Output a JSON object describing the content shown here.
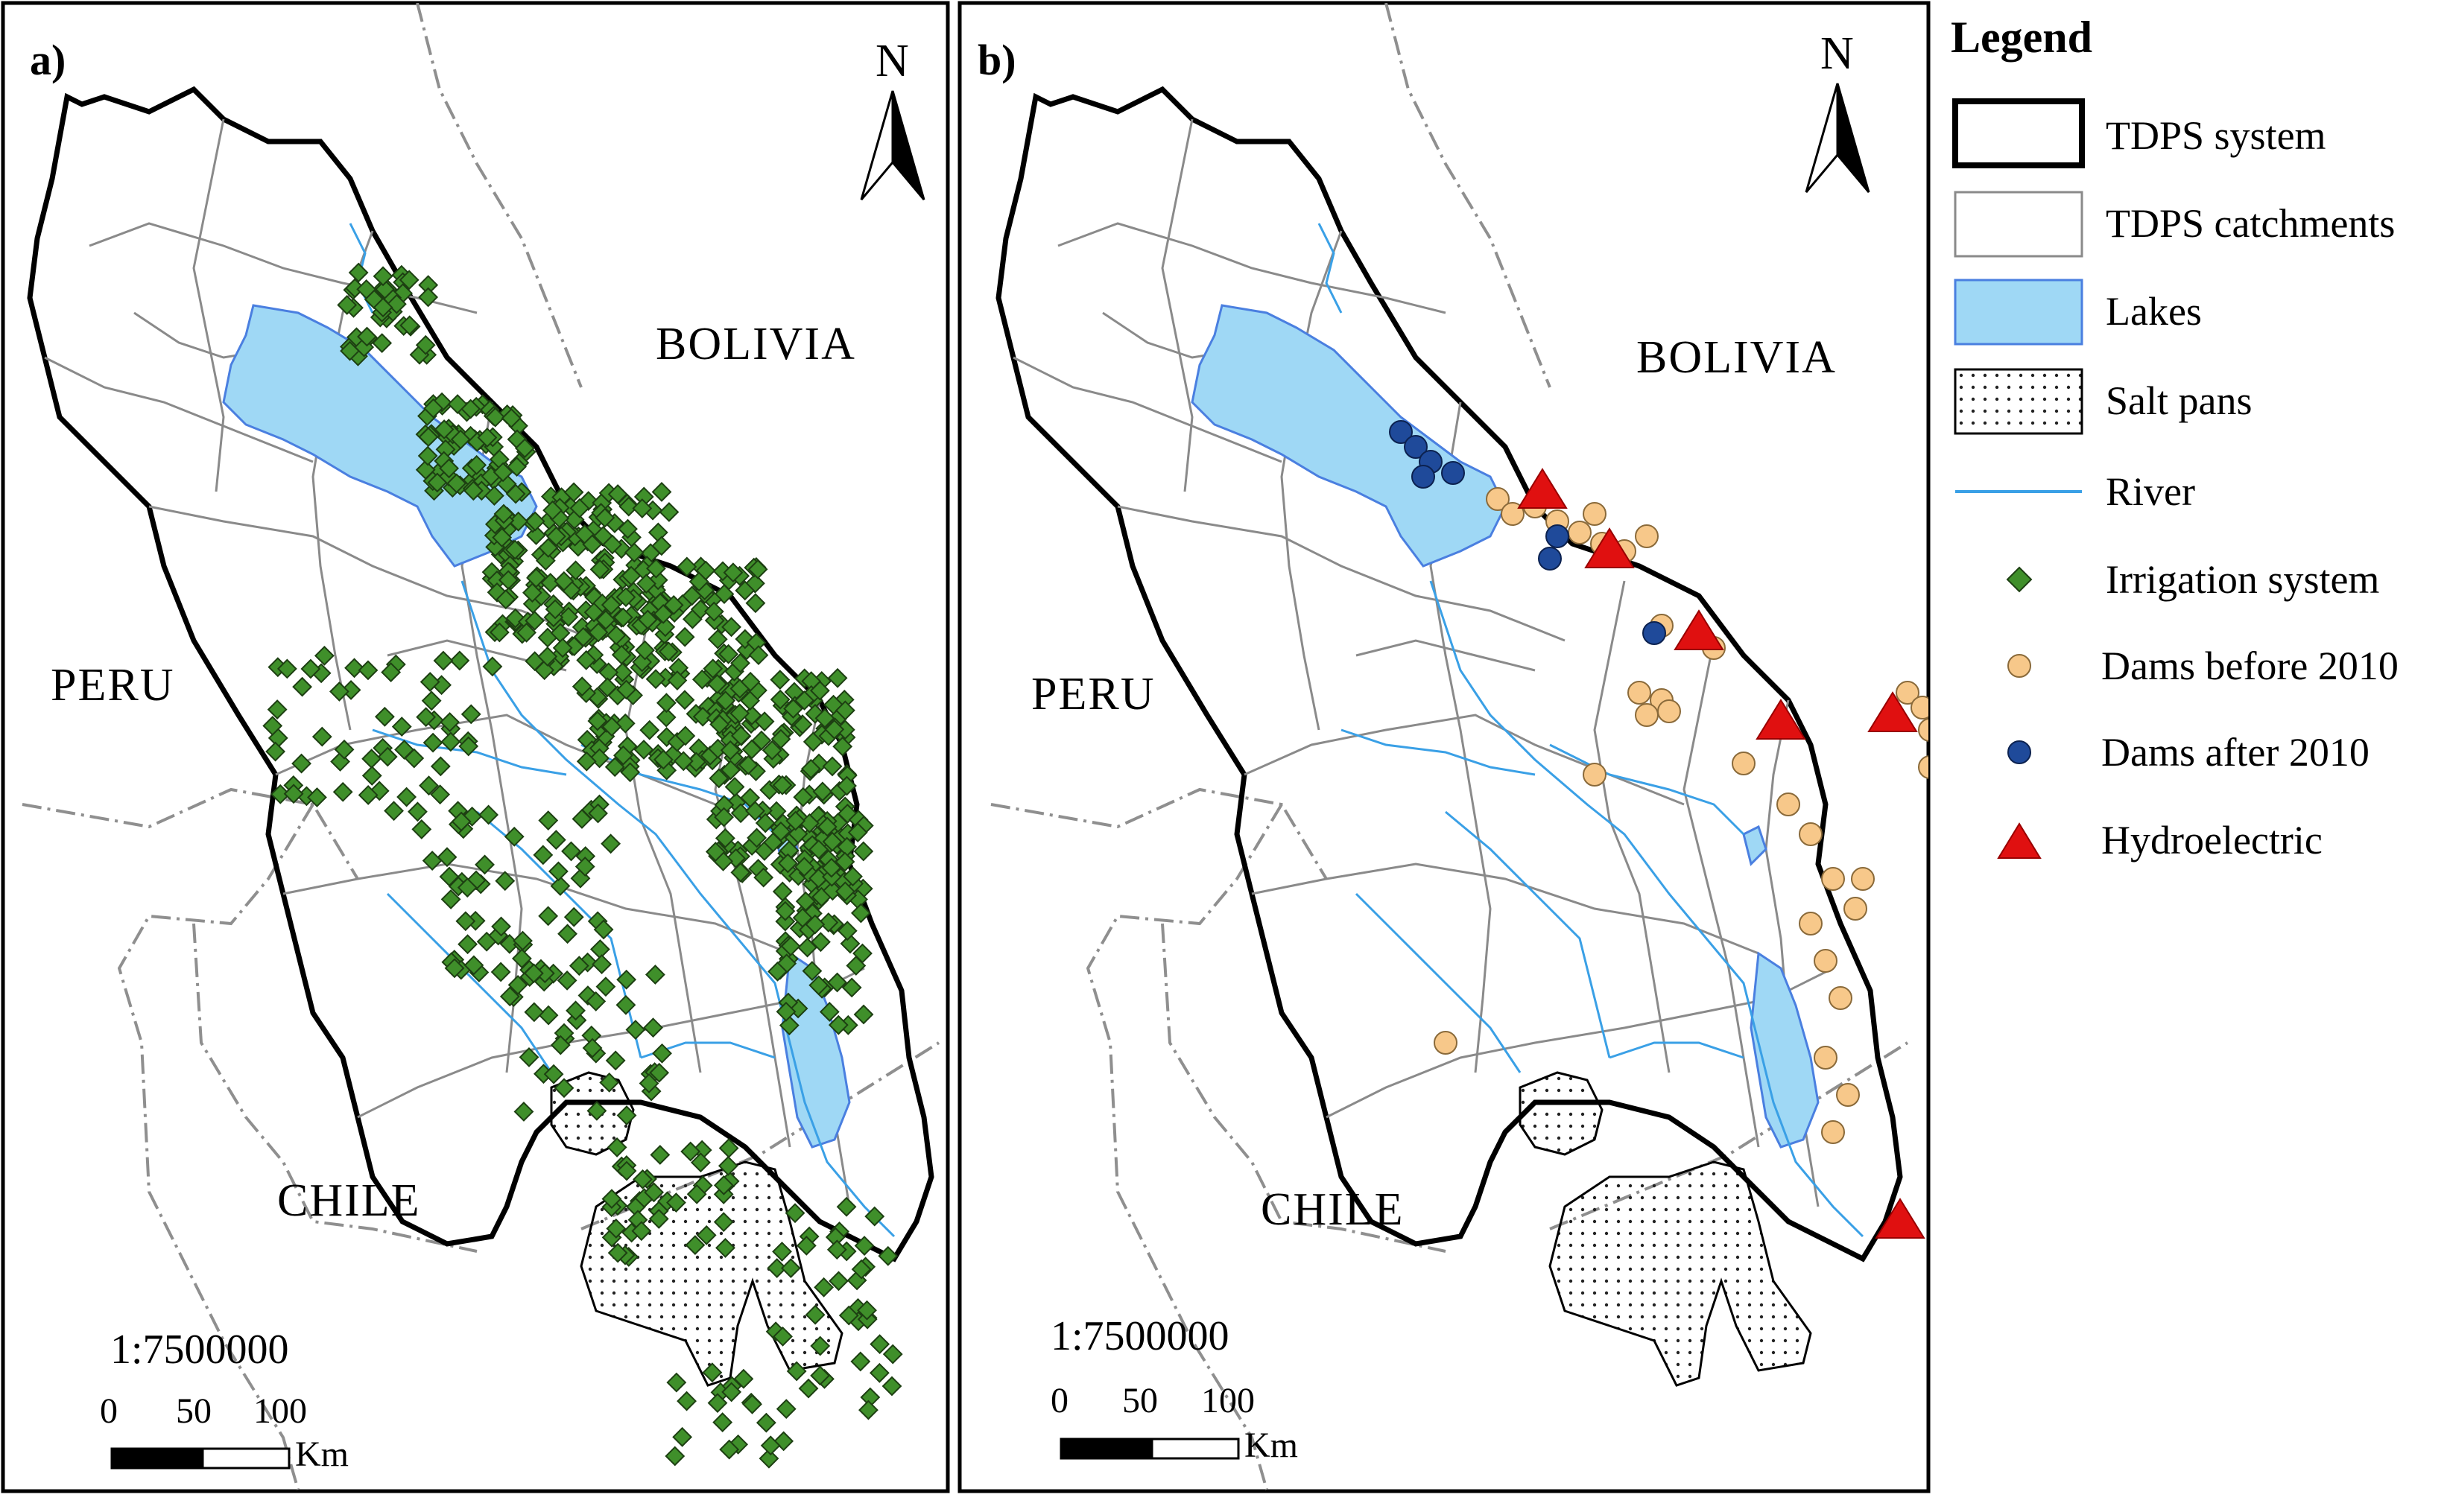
{
  "panels": [
    {
      "label": "a)",
      "countries": {
        "bolivia": "BOLIVIA",
        "peru": "PERU",
        "chile": "CHILE"
      },
      "north": "N",
      "scale": {
        "ratio": "1:7500000",
        "ticks": [
          "0",
          "50",
          "100"
        ],
        "unit": "Km"
      }
    },
    {
      "label": "b)",
      "countries": {
        "bolivia": "BOLIVIA",
        "peru": "PERU",
        "chile": "CHILE"
      },
      "north": "N",
      "scale": {
        "ratio": "1:7500000",
        "ticks": [
          "0",
          "50",
          "100"
        ],
        "unit": "Km"
      }
    }
  ],
  "legend": {
    "title": "Legend",
    "items": [
      {
        "label": "TDPS system",
        "symbol": "thick-outline"
      },
      {
        "label": "TDPS catchments",
        "symbol": "thin-outline"
      },
      {
        "label": "Lakes",
        "symbol": "lake-fill"
      },
      {
        "label": "Salt pans",
        "symbol": "dotted-fill"
      },
      {
        "label": "River",
        "symbol": "line"
      },
      {
        "label": "Irrigation system",
        "symbol": "green-diamond"
      },
      {
        "label": "Dams before 2010",
        "symbol": "orange-circle"
      },
      {
        "label": "Dams after 2010",
        "symbol": "blue-circle"
      },
      {
        "label": "Hydroelectric",
        "symbol": "red-triangle"
      }
    ]
  },
  "colors": {
    "lake": "#9fd8f5",
    "lake_edge": "#4a7fe0",
    "river": "#3aa0e6",
    "irrigation": "#3f8f2a",
    "dam_before": "#f7c88a",
    "dam_after": "#1f4a9a",
    "hydro": "#e01010",
    "boundary": "#000000",
    "catchment": "#8a8a8a",
    "country_border": "#8f8f8f"
  }
}
